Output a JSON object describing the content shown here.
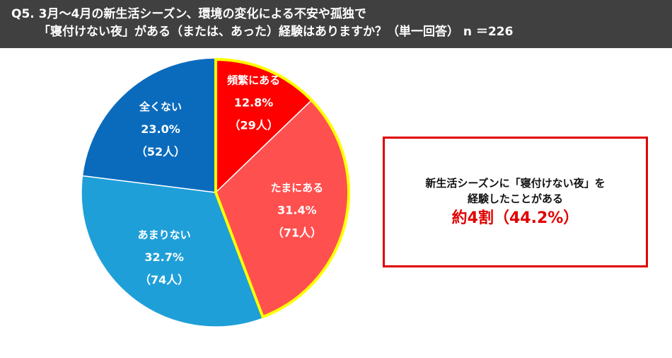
{
  "header": {
    "line1": "Q5. 3月～4月の新生活シーズン、環境の変化による不安や孤独で",
    "line2": "「寝付けない夜」がある（または、あった）経験はありますか？（単一回答） n ＝226"
  },
  "chart_data": {
    "type": "pie",
    "n": 226,
    "slices": [
      {
        "label": "頻繁にある",
        "percent_label": "12.8%",
        "count_label": "（29人）",
        "value": 12.8,
        "color": "#ff0000",
        "text_color": "#ffffff",
        "highlighted": true
      },
      {
        "label": "たまにある",
        "percent_label": "31.4%",
        "count_label": "（71人）",
        "value": 31.4,
        "color": "#ff5050",
        "text_color": "#ffffff",
        "highlighted": true
      },
      {
        "label": "あまりない",
        "percent_label": "32.7%",
        "count_label": "（74人）",
        "value": 32.7,
        "color": "#1f9fd8",
        "text_color": "#ffffff",
        "highlighted": false
      },
      {
        "label": "全くない",
        "percent_label": "23.0%",
        "count_label": "（52人）",
        "value": 23.0,
        "color": "#0a6bbd",
        "text_color": "#ffffff",
        "highlighted": false
      }
    ],
    "highlight_border_color": "#ffff00"
  },
  "callout": {
    "line1": "新生活シーズンに「寝付けない夜」を",
    "line2": "経験したことがある",
    "highlight": "約4割（44.2%）"
  }
}
